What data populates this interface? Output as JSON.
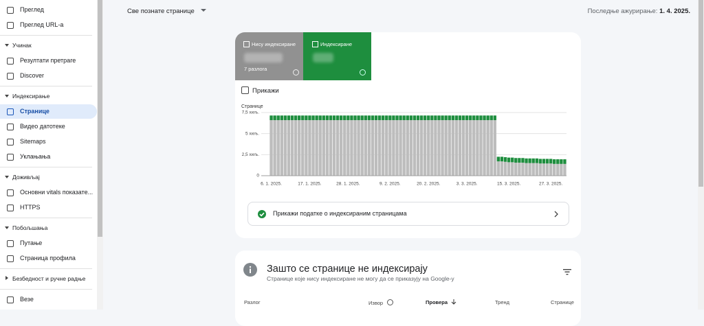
{
  "sidebar": {
    "groups": [
      {
        "items": [
          "Преглед",
          "Преглед URL-a"
        ]
      },
      {
        "title": "Учинак",
        "items": [
          "Резултати претраге",
          "Discover"
        ]
      },
      {
        "title": "Индексирање",
        "items": [
          "Странице",
          "Видео датотеке",
          "Sitemaps",
          "Уклањања"
        ]
      },
      {
        "title": "Доживљај",
        "items": [
          "Основни vitals показате...",
          "HTTPS"
        ]
      },
      {
        "title": "Побољшања",
        "items": [
          "Путање",
          "Страница профила"
        ]
      },
      {
        "title": "Безбедност и ручне радње",
        "items": []
      },
      {
        "items": [
          "Везе"
        ]
      }
    ]
  },
  "header": {
    "filter": "Све познате странице",
    "updated_label": "Последње ажурирање:",
    "updated_date": "1. 4. 2025."
  },
  "summary": {
    "not_indexed_reasons": "7 разлога",
    "show_checkbox": "Прикажи"
  },
  "chart_data": {
    "type": "stacked-bar",
    "y_label": "Странице",
    "categories": [
      "6. 1. 2025.",
      null,
      null,
      null,
      null,
      null,
      null,
      null,
      null,
      null,
      null,
      "17. 1. 2025.",
      null,
      null,
      null,
      null,
      null,
      null,
      null,
      null,
      null,
      null,
      "28. 1. 2025.",
      null,
      null,
      null,
      null,
      null,
      null,
      null,
      null,
      null,
      null,
      null,
      "9. 2. 2025.",
      null,
      null,
      null,
      null,
      null,
      null,
      null,
      null,
      null,
      null,
      "20. 2. 2025.",
      null,
      null,
      null,
      null,
      null,
      null,
      null,
      null,
      null,
      null,
      "3. 3. 2025.",
      null,
      null,
      null,
      null,
      null,
      null,
      null,
      null,
      null,
      null,
      null,
      "15. 3. 2025.",
      null,
      null,
      null,
      null,
      null,
      null,
      null,
      null,
      null,
      null,
      null,
      "27. 3. 2025.",
      null,
      null,
      null,
      null
    ],
    "series": [
      {
        "name": "Нису индексиране",
        "color": "#bdbdbd",
        "values": [
          6600,
          6600,
          6600,
          6600,
          6600,
          6600,
          6600,
          6600,
          6600,
          6600,
          6600,
          6600,
          6600,
          6600,
          6600,
          6600,
          6600,
          6600,
          6600,
          6600,
          6600,
          6600,
          6600,
          6600,
          6600,
          6600,
          6600,
          6600,
          6600,
          6600,
          6600,
          6600,
          6600,
          6600,
          6600,
          6600,
          6600,
          6600,
          6600,
          6600,
          6600,
          6600,
          6600,
          6600,
          6600,
          6600,
          6600,
          6600,
          6600,
          6600,
          6600,
          6600,
          6600,
          6600,
          6600,
          6600,
          6600,
          6600,
          6600,
          6600,
          6600,
          6600,
          6600,
          6600,
          6600,
          1700,
          1700,
          1650,
          1600,
          1600,
          1550,
          1550,
          1550,
          1500,
          1500,
          1500,
          1500,
          1450,
          1450,
          1450,
          1450,
          1400,
          1400,
          1400,
          1400
        ]
      },
      {
        "name": "Индексиране",
        "color": "#1e8e3e",
        "values": [
          550,
          550,
          550,
          550,
          550,
          550,
          550,
          550,
          550,
          550,
          550,
          550,
          550,
          550,
          550,
          550,
          550,
          550,
          550,
          550,
          550,
          550,
          550,
          550,
          550,
          550,
          550,
          550,
          550,
          550,
          550,
          550,
          550,
          550,
          550,
          550,
          550,
          550,
          550,
          550,
          550,
          550,
          550,
          550,
          550,
          550,
          550,
          550,
          550,
          550,
          550,
          550,
          550,
          550,
          550,
          550,
          550,
          550,
          550,
          550,
          550,
          550,
          550,
          550,
          550,
          550,
          550,
          550,
          550,
          550,
          550,
          550,
          550,
          550,
          550,
          550,
          550,
          550,
          550,
          550,
          550,
          550,
          550,
          550,
          550
        ]
      }
    ],
    "ylim": [
      0,
      7500
    ],
    "yticks": [
      0,
      {
        "value": 2500,
        "label": "2,5 хиљ."
      },
      {
        "value": 5000,
        "label": "5 хиљ."
      },
      {
        "value": 7500,
        "label": "7,5 хиљ."
      }
    ],
    "grid": true
  },
  "details_link": "Прикажи податке о индексираним страницама",
  "issues": {
    "title": "Зашто се странице не индексирају",
    "subtitle": "Странице које нису индексиране не могу да се приказују на Google-у",
    "columns": [
      "Разлог",
      "Извор",
      "Провера",
      "Тренд",
      "Странице"
    ]
  }
}
